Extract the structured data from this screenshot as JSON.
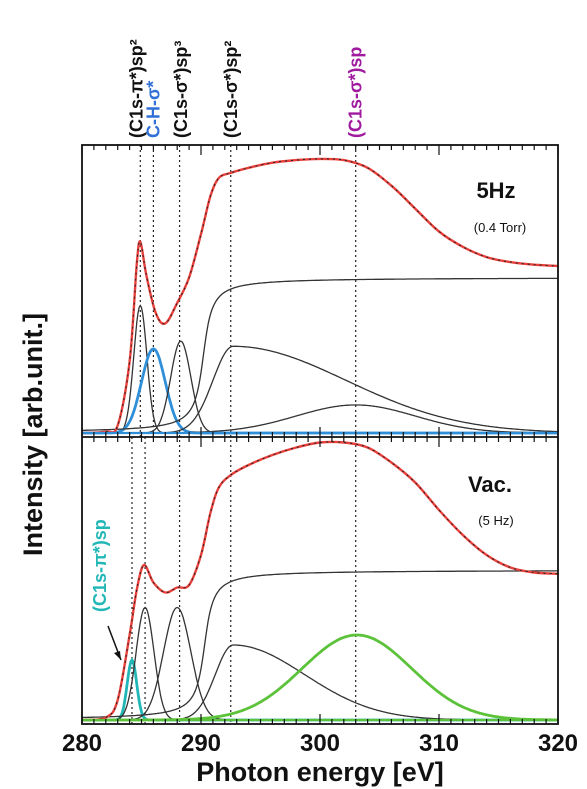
{
  "chart_data": {
    "type": "line",
    "xlabel": "Photon energy [eV]",
    "ylabel": "Intensity [arb.unit.]",
    "xlim": [
      280,
      320
    ],
    "xticks": [
      "280",
      "290",
      "300",
      "310",
      "320"
    ],
    "grid": false,
    "peak_markers": [
      {
        "energy": 284.2,
        "label": "(C1s-π*)sp",
        "color": "#22b7b7",
        "panel": "bottom"
      },
      {
        "energy": 284.9,
        "label": "(C1s-π*)sp²",
        "color": "#111111",
        "panel": "top"
      },
      {
        "energy": 285.3,
        "label": "(C1s-π*)sp²",
        "color": "#111111",
        "panel": "bottom"
      },
      {
        "energy": 286.0,
        "label": "C-H-σ*",
        "color": "#2f6fd6",
        "panel": "top"
      },
      {
        "energy": 288.2,
        "label": "(C1s-σ*)sp³",
        "color": "#111111",
        "panel": "both"
      },
      {
        "energy": 292.5,
        "label": "(C1s-σ*)sp²",
        "color": "#111111",
        "panel": "both"
      },
      {
        "energy": 303.0,
        "label": "(C1s-σ*)sp",
        "color": "#a01aa0",
        "panel": "both"
      }
    ],
    "top_labels": [
      {
        "text": "(C1s-π*)sp²",
        "color": "#111111"
      },
      {
        "text": "C-H-σ*",
        "color": "#2f6fd6"
      },
      {
        "text": "(C1s-σ*)sp³",
        "color": "#111111"
      },
      {
        "text": "(C1s-σ*)sp²",
        "color": "#111111"
      },
      {
        "text": "(C1s-σ*)sp",
        "color": "#a01aa0"
      }
    ],
    "bottom_annotation": {
      "text": "(C1s-π*)sp",
      "color": "#22b7b7"
    },
    "panels": [
      {
        "name": "5Hz",
        "label": "5Hz",
        "sublabel": "(0.4 Torr)",
        "components": [
          {
            "kind": "gauss",
            "center": 284.9,
            "sigma": 0.55,
            "amp": 0.5,
            "color": "#333333"
          },
          {
            "kind": "gauss",
            "center": 286.0,
            "sigma": 1.0,
            "amp": 0.33,
            "color": "#2f8fd8"
          },
          {
            "kind": "gauss",
            "center": 288.3,
            "sigma": 0.85,
            "amp": 0.36,
            "color": "#333333"
          },
          {
            "kind": "step",
            "center": 290.2,
            "width": 0.55,
            "amp": 0.61,
            "color": "#333333"
          },
          {
            "kind": "asym",
            "center": 292.7,
            "sigma_left": 1.7,
            "sigma_right": 9.5,
            "amp": 0.34,
            "color": "#333333"
          },
          {
            "kind": "asym",
            "center": 303.0,
            "sigma_left": 5.0,
            "sigma_right": 5.0,
            "amp": 0.11,
            "color": "#333333"
          }
        ],
        "total": {
          "color": "#e8413c",
          "points": [
            [
              280,
              0
            ],
            [
              282,
              0.005
            ],
            [
              283,
              0.03
            ],
            [
              284,
              0.28
            ],
            [
              284.6,
              0.66
            ],
            [
              284.9,
              0.75
            ],
            [
              285.4,
              0.62
            ],
            [
              286.2,
              0.47
            ],
            [
              287.0,
              0.43
            ],
            [
              288.0,
              0.51
            ],
            [
              289.0,
              0.61
            ],
            [
              290.0,
              0.78
            ],
            [
              290.8,
              0.93
            ],
            [
              291.5,
              1.0
            ],
            [
              292.5,
              1.02
            ],
            [
              294,
              1.04
            ],
            [
              296,
              1.06
            ],
            [
              298,
              1.07
            ],
            [
              300,
              1.075
            ],
            [
              302,
              1.07
            ],
            [
              304,
              1.04
            ],
            [
              306,
              0.97
            ],
            [
              308,
              0.88
            ],
            [
              310,
              0.79
            ],
            [
              312,
              0.73
            ],
            [
              314,
              0.69
            ],
            [
              316,
              0.67
            ],
            [
              318,
              0.66
            ],
            [
              320,
              0.655
            ]
          ]
        }
      },
      {
        "name": "Vac.",
        "label": "Vac.",
        "sublabel": "(5 Hz)",
        "components": [
          {
            "kind": "gauss",
            "center": 284.2,
            "sigma": 0.4,
            "amp": 0.24,
            "color": "#22b7b7"
          },
          {
            "kind": "gauss",
            "center": 285.3,
            "sigma": 0.75,
            "amp": 0.45,
            "color": "#333333"
          },
          {
            "kind": "gauss",
            "center": 288.0,
            "sigma": 1.15,
            "amp": 0.45,
            "color": "#333333"
          },
          {
            "kind": "step",
            "center": 290.3,
            "width": 0.55,
            "amp": 0.6,
            "color": "#333333"
          },
          {
            "kind": "asym",
            "center": 292.7,
            "sigma_left": 1.5,
            "sigma_right": 6.0,
            "amp": 0.3,
            "color": "#333333"
          },
          {
            "kind": "asym",
            "center": 303.1,
            "sigma_left": 4.6,
            "sigma_right": 4.6,
            "amp": 0.34,
            "color": "#5cc23a"
          }
        ],
        "total": {
          "color": "#e8413c",
          "points": [
            [
              280,
              0
            ],
            [
              282,
              0.01
            ],
            [
              283,
              0.08
            ],
            [
              284,
              0.34
            ],
            [
              284.6,
              0.52
            ],
            [
              285.2,
              0.62
            ],
            [
              286.0,
              0.55
            ],
            [
              287.0,
              0.51
            ],
            [
              288.0,
              0.53
            ],
            [
              289.0,
              0.54
            ],
            [
              290.0,
              0.66
            ],
            [
              290.8,
              0.83
            ],
            [
              291.5,
              0.93
            ],
            [
              292.5,
              0.98
            ],
            [
              294,
              1.02
            ],
            [
              296,
              1.06
            ],
            [
              298,
              1.09
            ],
            [
              300,
              1.11
            ],
            [
              302,
              1.11
            ],
            [
              304,
              1.09
            ],
            [
              306,
              1.03
            ],
            [
              308,
              0.95
            ],
            [
              310,
              0.84
            ],
            [
              312,
              0.74
            ],
            [
              314,
              0.66
            ],
            [
              316,
              0.61
            ],
            [
              318,
              0.59
            ],
            [
              320,
              0.585
            ]
          ]
        }
      }
    ]
  }
}
